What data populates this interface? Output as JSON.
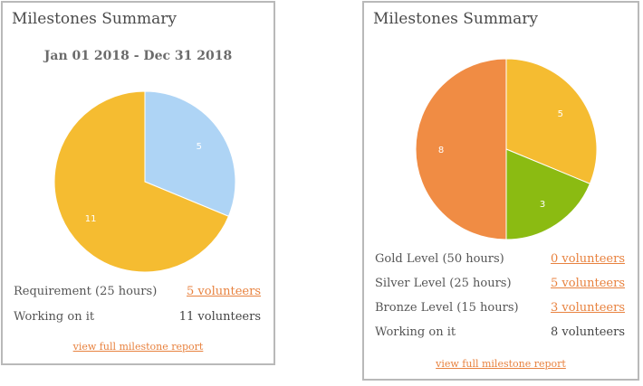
{
  "left_card": {
    "title": "Milestones Summary",
    "date_range": "Jan 01 2018 - Dec 31 2018",
    "rows": [
      {
        "label": "Requirement (25 hours)",
        "value": "5 volunteers",
        "is_link": true
      },
      {
        "label": "Working on it",
        "value": "11 volunteers",
        "is_link": false
      }
    ],
    "report_link": "view full milestone report"
  },
  "right_card": {
    "title": "Milestones Summary",
    "rows": [
      {
        "label": "Gold Level (50 hours)",
        "value": "0 volunteers",
        "is_link": true
      },
      {
        "label": "Silver Level (25 hours)",
        "value": "5 volunteers",
        "is_link": true
      },
      {
        "label": "Bronze Level (15 hours)",
        "value": "3 volunteers",
        "is_link": true
      },
      {
        "label": "Working on it",
        "value": "8 volunteers",
        "is_link": false
      }
    ],
    "report_link": "view full milestone report"
  },
  "chart_data": [
    {
      "type": "pie",
      "slices": [
        {
          "label": "5",
          "value": 5,
          "color": "#aed4f5"
        },
        {
          "label": "11",
          "value": 11,
          "color": "#f5bc31"
        }
      ]
    },
    {
      "type": "pie",
      "slices": [
        {
          "label": "5",
          "value": 5,
          "color": "#f5bc31"
        },
        {
          "label": "3",
          "value": 3,
          "color": "#8bbb12"
        },
        {
          "label": "8",
          "value": 8,
          "color": "#f08c44"
        }
      ]
    }
  ]
}
